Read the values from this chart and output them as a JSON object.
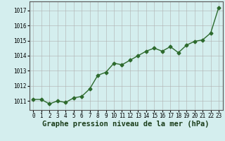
{
  "x": [
    0,
    1,
    2,
    3,
    4,
    5,
    6,
    7,
    8,
    9,
    10,
    11,
    12,
    13,
    14,
    15,
    16,
    17,
    18,
    19,
    20,
    21,
    22,
    23
  ],
  "y": [
    1011.1,
    1011.1,
    1010.8,
    1011.0,
    1010.9,
    1011.2,
    1011.3,
    1011.8,
    1012.7,
    1012.9,
    1013.5,
    1013.4,
    1013.7,
    1014.0,
    1014.3,
    1014.5,
    1014.3,
    1014.6,
    1014.2,
    1014.7,
    1014.95,
    1015.05,
    1015.5,
    1017.2
  ],
  "line_color": "#2d6a2d",
  "marker": "D",
  "marker_size": 2.5,
  "line_width": 1.0,
  "background_color": "#d4eeee",
  "grid_color": "#b0b0b0",
  "xlabel": "Graphe pression niveau de la mer (hPa)",
  "xlabel_fontsize": 7.5,
  "ylabel_ticks": [
    1011,
    1012,
    1013,
    1014,
    1015,
    1016,
    1017
  ],
  "xlim": [
    -0.5,
    23.5
  ],
  "ylim": [
    1010.4,
    1017.6
  ],
  "xtick_fontsize": 5.5,
  "ytick_fontsize": 5.5
}
